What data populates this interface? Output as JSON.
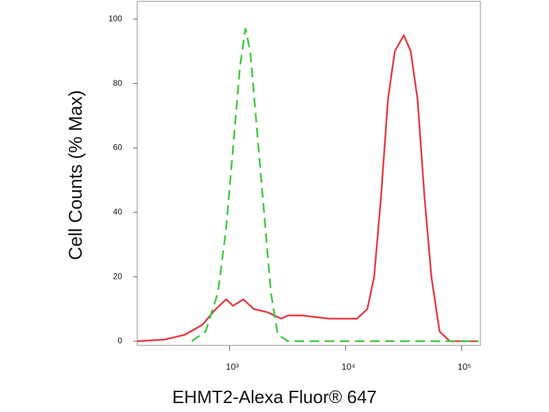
{
  "chart_data": {
    "type": "line",
    "xlabel": "EHMT2-Alexa Fluor® 647",
    "ylabel": "Cell Counts (% Max)",
    "xscale": "log",
    "xlim": [
      160,
      145000
    ],
    "ylim": [
      -1.3,
      105.5
    ],
    "xticks": [
      {
        "value": 1000,
        "label": "10³"
      },
      {
        "value": 10000,
        "label": "10⁴"
      },
      {
        "value": 100000,
        "label": "10⁵"
      }
    ],
    "yticks": [
      0,
      20,
      40,
      60,
      80,
      100
    ],
    "series": [
      {
        "color": "#e8383d",
        "dash": "solid",
        "x": [
          160,
          273,
          411,
          579,
          761,
          934,
          1071,
          1314,
          1614,
          2120,
          2787,
          3193,
          4198,
          5521,
          7257,
          9530,
          12530,
          15380,
          17620,
          20220,
          23170,
          26550,
          31700,
          36380,
          41690,
          47820,
          54810,
          64590,
          79250,
          140000
        ],
        "values": [
          0,
          0.5,
          2,
          5,
          10,
          13,
          11,
          13,
          10,
          9,
          7,
          8,
          8,
          7.5,
          7,
          7,
          7,
          10,
          20,
          45,
          75,
          90,
          95,
          90,
          75,
          45,
          20,
          3,
          0,
          0
        ]
      },
      {
        "color": "#3cc83c",
        "dash": "dashed",
        "x": [
          472,
          620,
          793,
          933,
          1071,
          1227,
          1368,
          1507,
          1728,
          1981,
          2270,
          2603,
          3193,
          140000
        ],
        "values": [
          0,
          3,
          15,
          35,
          60,
          85,
          97,
          90,
          65,
          40,
          15,
          2,
          0,
          0
        ]
      }
    ]
  }
}
